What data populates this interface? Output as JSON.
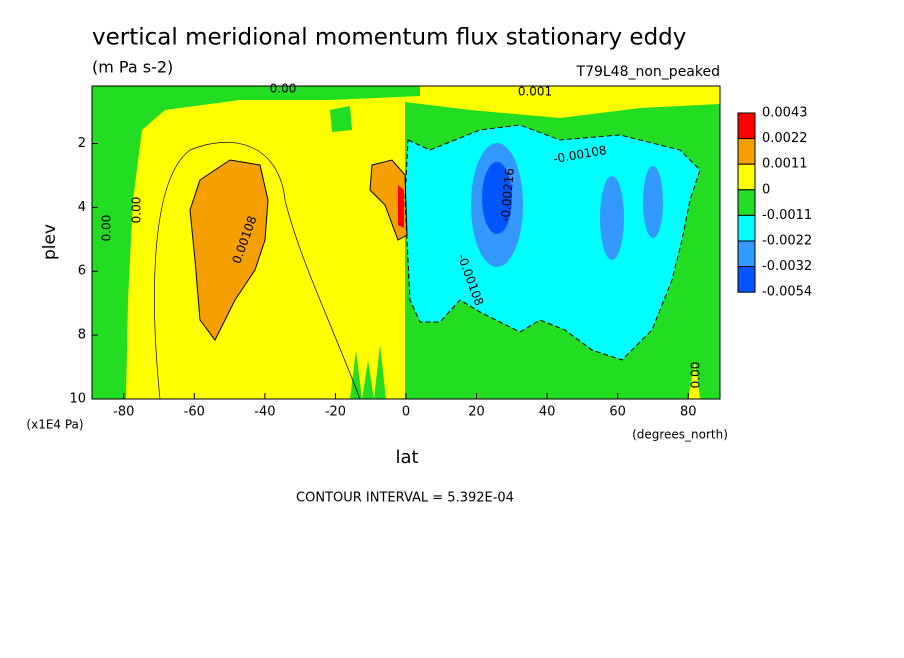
{
  "chart_data": {
    "type": "contour",
    "title": "vertical meridional momentum flux stationary eddy",
    "subtitle": "(m Pa s-2)",
    "run_label": "T79L48_non_peaked",
    "x_label": "lat",
    "x_unit": "(degrees_north)",
    "y_label": "plev",
    "y_unit": "(x1E4 Pa)",
    "note": "CONTOUR INTERVAL = 5.392E-04",
    "xlim": [
      -89,
      89
    ],
    "xticks": [
      -80,
      -60,
      -40,
      -20,
      0,
      20,
      40,
      60,
      80
    ],
    "ylim": [
      10,
      0.2
    ],
    "yticks": [
      2,
      4,
      6,
      8,
      10
    ],
    "levels": [
      0.0043,
      0.0022,
      0.0011,
      0,
      -0.0011,
      -0.0022,
      -0.0032,
      -0.0054
    ],
    "colors": [
      "#ff0000",
      "#f5a000",
      "#ffff00",
      "#22dd22",
      "#00ffff",
      "#3399ff",
      "#0055ff"
    ],
    "contour_labels": [
      "0.00",
      "0.00",
      "0.00",
      "0.00108",
      "0.001",
      "-0.00108",
      "-0.00216",
      "-0.00108",
      "0.00"
    ]
  }
}
